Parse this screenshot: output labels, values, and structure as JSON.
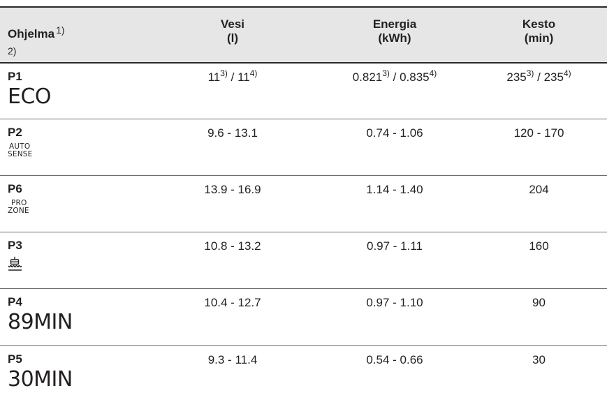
{
  "header": {
    "program": "Ohjelma",
    "program_ref1": "1)",
    "program_ref2": "2)",
    "water_line1": "Vesi",
    "water_line2": "(l)",
    "energy_line1": "Energia",
    "energy_line2": "(kWh)",
    "duration_line1": "Kesto",
    "duration_line2": "(min)"
  },
  "rows": [
    {
      "id": "P1",
      "label": "ECO",
      "water_a": "11",
      "water_a_ref": "3)",
      "water_sep": " / ",
      "water_b": "11",
      "water_b_ref": "4)",
      "energy_a": "0.821",
      "energy_a_ref": "3)",
      "energy_sep": " / ",
      "energy_b": "0.835",
      "energy_b_ref": "4)",
      "duration_a": "235",
      "duration_a_ref": "3)",
      "duration_sep": " / ",
      "duration_b": "235",
      "duration_b_ref": "4)"
    },
    {
      "id": "P2",
      "label_line1": "AUTO",
      "label_line2": "SENSE",
      "water": "9.6 - 13.1",
      "energy": "0.74 - 1.06",
      "duration": "120 - 170"
    },
    {
      "id": "P6",
      "label_line1": "PRO",
      "label_line2": "ZONE",
      "water": "13.9 - 16.9",
      "energy": "1.14 - 1.40",
      "duration": "204"
    },
    {
      "id": "P3",
      "icon": "glass-program-icon",
      "water": "10.8 - 13.2",
      "energy": "0.97 - 1.11",
      "duration": "160"
    },
    {
      "id": "P4",
      "label": "89MIN",
      "water": "10.4 - 12.7",
      "energy": "0.97 - 1.10",
      "duration": "90"
    },
    {
      "id": "P5",
      "label": "30MIN",
      "water": "9.3 - 11.4",
      "energy": "0.54 - 0.66",
      "duration": "30"
    }
  ]
}
